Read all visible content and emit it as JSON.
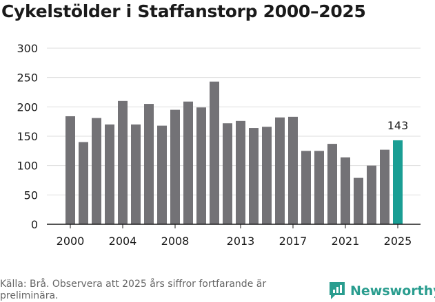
{
  "title": "Cykelstölder i Staffanstorp 2000–2025",
  "source": "Källa: Brå. Observera att 2025 års siffror fortfarande är preliminära.",
  "brand": "Newsworthy",
  "colors": {
    "bar": "#737276",
    "highlight": "#1a9e94",
    "axis": "#1a1a1a",
    "grid": "#dddddd",
    "brand": "#2a9d8f"
  },
  "chart_data": {
    "type": "bar",
    "title": "Cykelstölder i Staffanstorp 2000–2025",
    "xlabel": "",
    "ylabel": "",
    "ylim": [
      0,
      300
    ],
    "yticks": [
      0,
      50,
      100,
      150,
      200,
      250,
      300
    ],
    "xticks": [
      "2000",
      "2004",
      "2008",
      "2013",
      "2017",
      "2021",
      "2025"
    ],
    "categories": [
      "2000",
      "2001",
      "2002",
      "2003",
      "2004",
      "2005",
      "2006",
      "2007",
      "2008",
      "2009",
      "2010",
      "2011",
      "2012",
      "2013",
      "2014",
      "2015",
      "2016",
      "2017",
      "2018",
      "2019",
      "2020",
      "2021",
      "2022",
      "2023",
      "2024",
      "2025"
    ],
    "values": [
      184,
      140,
      181,
      170,
      210,
      170,
      205,
      168,
      195,
      209,
      199,
      243,
      172,
      176,
      164,
      166,
      182,
      183,
      125,
      125,
      137,
      114,
      79,
      100,
      127,
      143
    ],
    "highlight_category": "2025",
    "annotation": "143",
    "grid": true
  }
}
